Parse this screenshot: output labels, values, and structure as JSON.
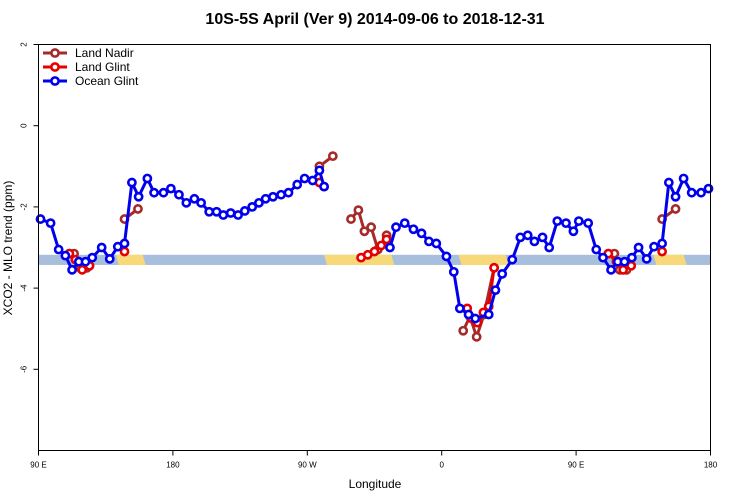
{
  "chart_data": {
    "type": "line",
    "title": "10S-5S April (Ver 9)   2014-09-06 to 2018-12-31",
    "xlabel": "Longitude",
    "ylabel": "XCO2 - MLO trend (ppm)",
    "xlim": [
      0,
      100
    ],
    "ylim": [
      -8,
      2
    ],
    "x_ticks": [
      {
        "pos": 0,
        "label": "90 E"
      },
      {
        "pos": 20,
        "label": "180"
      },
      {
        "pos": 40,
        "label": "90 W"
      },
      {
        "pos": 60,
        "label": "0"
      },
      {
        "pos": 80,
        "label": "90 E"
      },
      {
        "pos": 100,
        "label": "180"
      }
    ],
    "y_ticks": [
      -6,
      -4,
      -2,
      0,
      2
    ],
    "legend_position": "top-left",
    "land_band": {
      "y_range": [
        -3.43,
        -3.18
      ],
      "ocean_color": "#a7bfdc",
      "land_color": "#f7d97a",
      "land_segments": [
        [
          11.5,
          15.5
        ],
        [
          42.5,
          52.5
        ],
        [
          62.5,
          69.5
        ],
        [
          91.5,
          96.0
        ]
      ]
    },
    "series": [
      {
        "name": "Land Nadir",
        "color": "#a52a2a",
        "segments": [
          [
            [
              4.6,
              -3.15
            ],
            [
              5.3,
              -3.15
            ],
            [
              6.2,
              -3.5
            ],
            [
              7.2,
              -3.5
            ]
          ],
          [
            [
              12.8,
              -2.3
            ],
            [
              14.8,
              -2.05
            ]
          ],
          [
            [
              41.8,
              -1.0
            ],
            [
              43.8,
              -0.75
            ]
          ],
          [
            [
              46.5,
              -2.3
            ],
            [
              47.6,
              -2.08
            ],
            [
              48.5,
              -2.6
            ],
            [
              49.5,
              -2.5
            ],
            [
              50.5,
              -3.05
            ],
            [
              51.8,
              -2.7
            ]
          ],
          [
            [
              63.2,
              -5.05
            ],
            [
              64.2,
              -4.7
            ],
            [
              65.2,
              -5.2
            ],
            [
              66.3,
              -4.65
            ],
            [
              67.8,
              -3.5
            ]
          ],
          [
            [
              84.8,
              -3.15
            ],
            [
              85.7,
              -3.15
            ],
            [
              86.5,
              -3.55
            ],
            [
              87.5,
              -3.55
            ]
          ],
          [
            [
              92.8,
              -2.3
            ],
            [
              94.8,
              -2.05
            ]
          ]
        ]
      },
      {
        "name": "Land Glint",
        "color": "#e60000",
        "segments": [
          [
            [
              4.6,
              -3.15
            ],
            [
              5.5,
              -3.3
            ],
            [
              6.5,
              -3.55
            ],
            [
              7.6,
              -3.45
            ]
          ],
          [
            [
              12.8,
              -3.1
            ]
          ],
          [
            [
              41.8,
              -1.4
            ],
            [
              42.5,
              -1.5
            ]
          ],
          [
            [
              48.0,
              -3.25
            ],
            [
              49.0,
              -3.18
            ],
            [
              50.0,
              -3.1
            ],
            [
              51.0,
              -2.95
            ],
            [
              51.8,
              -2.8
            ]
          ],
          [
            [
              63.8,
              -4.5
            ],
            [
              64.5,
              -4.75
            ],
            [
              65.3,
              -4.85
            ],
            [
              66.2,
              -4.6
            ],
            [
              67.0,
              -4.45
            ],
            [
              67.8,
              -3.5
            ]
          ],
          [
            [
              84.8,
              -3.15
            ],
            [
              86.0,
              -3.35
            ],
            [
              87.0,
              -3.55
            ],
            [
              88.2,
              -3.45
            ]
          ],
          [
            [
              92.8,
              -3.1
            ]
          ]
        ]
      },
      {
        "name": "Ocean Glint",
        "color": "#0000ee",
        "segments": [
          [
            [
              0.3,
              -2.3
            ],
            [
              1.8,
              -2.4
            ],
            [
              3.0,
              -3.05
            ],
            [
              4.0,
              -3.2
            ],
            [
              5.0,
              -3.55
            ],
            [
              6.0,
              -3.35
            ],
            [
              7.0,
              -3.35
            ],
            [
              8.0,
              -3.25
            ],
            [
              9.4,
              -3.0
            ],
            [
              10.6,
              -3.28
            ],
            [
              11.8,
              -2.98
            ],
            [
              12.8,
              -2.9
            ],
            [
              13.9,
              -1.4
            ],
            [
              14.9,
              -1.75
            ],
            [
              16.2,
              -1.3
            ],
            [
              17.2,
              -1.65
            ],
            [
              18.6,
              -1.65
            ],
            [
              19.7,
              -1.55
            ],
            [
              20.9,
              -1.7
            ],
            [
              22.0,
              -1.9
            ],
            [
              23.2,
              -1.8
            ],
            [
              24.2,
              -1.9
            ],
            [
              25.4,
              -2.12
            ],
            [
              26.5,
              -2.12
            ],
            [
              27.5,
              -2.2
            ],
            [
              28.6,
              -2.15
            ],
            [
              29.7,
              -2.2
            ],
            [
              30.7,
              -2.1
            ],
            [
              31.8,
              -2.0
            ],
            [
              32.8,
              -1.9
            ],
            [
              33.8,
              -1.8
            ],
            [
              34.9,
              -1.75
            ],
            [
              36.1,
              -1.7
            ],
            [
              37.2,
              -1.65
            ],
            [
              38.5,
              -1.45
            ],
            [
              39.6,
              -1.3
            ],
            [
              40.8,
              -1.35
            ],
            [
              41.8,
              -1.1
            ],
            [
              42.5,
              -1.5
            ]
          ],
          [
            [
              52.3,
              -3.0
            ],
            [
              53.2,
              -2.5
            ],
            [
              54.5,
              -2.4
            ],
            [
              55.8,
              -2.55
            ],
            [
              57.0,
              -2.65
            ],
            [
              58.1,
              -2.85
            ],
            [
              59.2,
              -2.9
            ],
            [
              60.7,
              -3.22
            ],
            [
              61.8,
              -3.6
            ],
            [
              62.7,
              -4.5
            ],
            [
              64.0,
              -4.65
            ],
            [
              65.0,
              -4.75
            ],
            [
              67.0,
              -4.65
            ],
            [
              68.0,
              -4.05
            ],
            [
              69.0,
              -3.65
            ],
            [
              70.5,
              -3.3
            ],
            [
              71.7,
              -2.75
            ],
            [
              72.8,
              -2.7
            ],
            [
              73.8,
              -2.85
            ],
            [
              75.0,
              -2.75
            ],
            [
              76.0,
              -3.0
            ],
            [
              77.2,
              -2.35
            ],
            [
              78.5,
              -2.4
            ],
            [
              79.6,
              -2.6
            ],
            [
              80.4,
              -2.35
            ],
            [
              81.8,
              -2.4
            ],
            [
              83.0,
              -3.05
            ],
            [
              84.0,
              -3.25
            ],
            [
              85.2,
              -3.55
            ],
            [
              86.2,
              -3.35
            ],
            [
              87.2,
              -3.35
            ],
            [
              88.3,
              -3.25
            ],
            [
              89.3,
              -3.0
            ],
            [
              90.5,
              -3.28
            ],
            [
              91.6,
              -2.98
            ],
            [
              92.8,
              -2.9
            ],
            [
              93.8,
              -1.4
            ],
            [
              94.8,
              -1.75
            ],
            [
              96.0,
              -1.3
            ],
            [
              97.2,
              -1.65
            ],
            [
              98.6,
              -1.65
            ],
            [
              99.7,
              -1.55
            ]
          ]
        ]
      }
    ]
  }
}
